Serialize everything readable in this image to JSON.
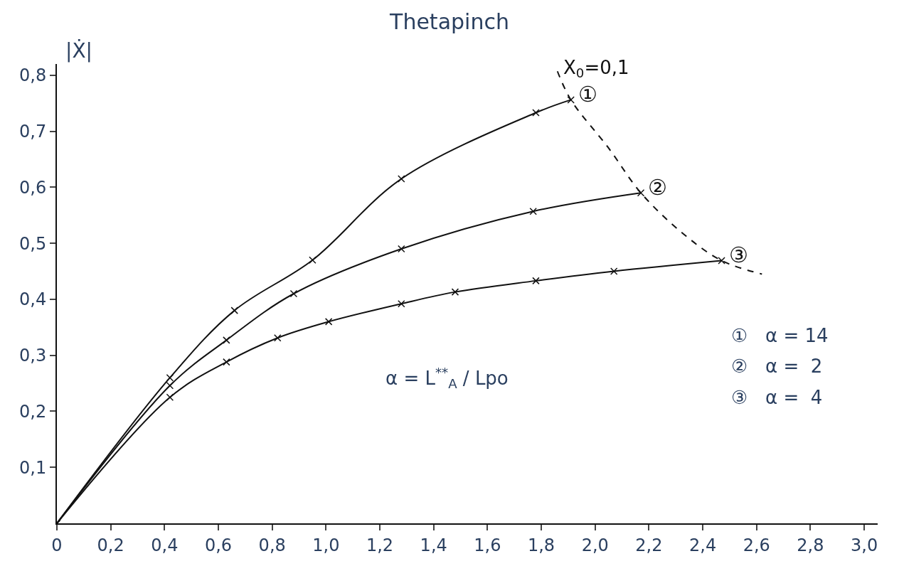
{
  "chart_data": {
    "type": "line",
    "title": "Thetapinch",
    "ylabel": "|Ẋ|",
    "xlim": [
      0,
      3.05
    ],
    "ylim": [
      0,
      0.82
    ],
    "xticks": [
      {
        "value": 0,
        "label": "0"
      },
      {
        "value": 0.2,
        "label": "0,2"
      },
      {
        "value": 0.4,
        "label": "0,4"
      },
      {
        "value": 0.6,
        "label": "0,6"
      },
      {
        "value": 0.8,
        "label": "0,8"
      },
      {
        "value": 1.0,
        "label": "1,0"
      },
      {
        "value": 1.2,
        "label": "1,2"
      },
      {
        "value": 1.4,
        "label": "1,4"
      },
      {
        "value": 1.6,
        "label": "1,6"
      },
      {
        "value": 1.8,
        "label": "1,8"
      },
      {
        "value": 2.0,
        "label": "2,0"
      },
      {
        "value": 2.2,
        "label": "2,2"
      },
      {
        "value": 2.4,
        "label": "2,4"
      },
      {
        "value": 2.6,
        "label": "2,6"
      },
      {
        "value": 2.8,
        "label": "2,8"
      },
      {
        "value": 3.0,
        "label": "3,0"
      }
    ],
    "yticks": [
      {
        "value": 0.1,
        "label": "0,1"
      },
      {
        "value": 0.2,
        "label": "0,2"
      },
      {
        "value": 0.3,
        "label": "0,3"
      },
      {
        "value": 0.4,
        "label": "0,4"
      },
      {
        "value": 0.5,
        "label": "0,5"
      },
      {
        "value": 0.6,
        "label": "0,6"
      },
      {
        "value": 0.7,
        "label": "0,7"
      },
      {
        "value": 0.8,
        "label": "0,8"
      }
    ],
    "series": [
      {
        "name": "①",
        "color": "#111111",
        "marker": "cross",
        "line_style": "solid",
        "x": [
          0,
          0.42,
          0.66,
          0.95,
          1.28,
          1.78,
          1.91
        ],
        "values": [
          0,
          0.26,
          0.38,
          0.47,
          0.615,
          0.733,
          0.756
        ]
      },
      {
        "name": "②",
        "color": "#111111",
        "marker": "cross",
        "line_style": "solid",
        "x": [
          0,
          0.42,
          0.63,
          0.88,
          1.28,
          1.77,
          2.17
        ],
        "values": [
          0,
          0.246,
          0.327,
          0.41,
          0.49,
          0.557,
          0.59
        ]
      },
      {
        "name": "③",
        "color": "#111111",
        "marker": "cross",
        "line_style": "solid",
        "x": [
          0,
          0.42,
          0.63,
          0.82,
          1.01,
          1.28,
          1.48,
          1.78,
          2.07,
          2.47
        ],
        "values": [
          0,
          0.225,
          0.288,
          0.331,
          0.36,
          0.392,
          0.413,
          0.433,
          0.45,
          0.469
        ]
      },
      {
        "name": "X$_{0}$=0,1",
        "color": "#111111",
        "marker": "none",
        "line_style": "dashed",
        "x": [
          1.86,
          1.91,
          2.05,
          2.17,
          2.32,
          2.47,
          2.62
        ],
        "values": [
          0.807,
          0.756,
          0.67,
          0.59,
          0.52,
          0.469,
          0.445
        ]
      }
    ],
    "annotations": [
      "α = L$^{**}$$_{A}$ / Lpo",
      "①   α = 14",
      "②   α =  2",
      "③   α =  4"
    ]
  }
}
